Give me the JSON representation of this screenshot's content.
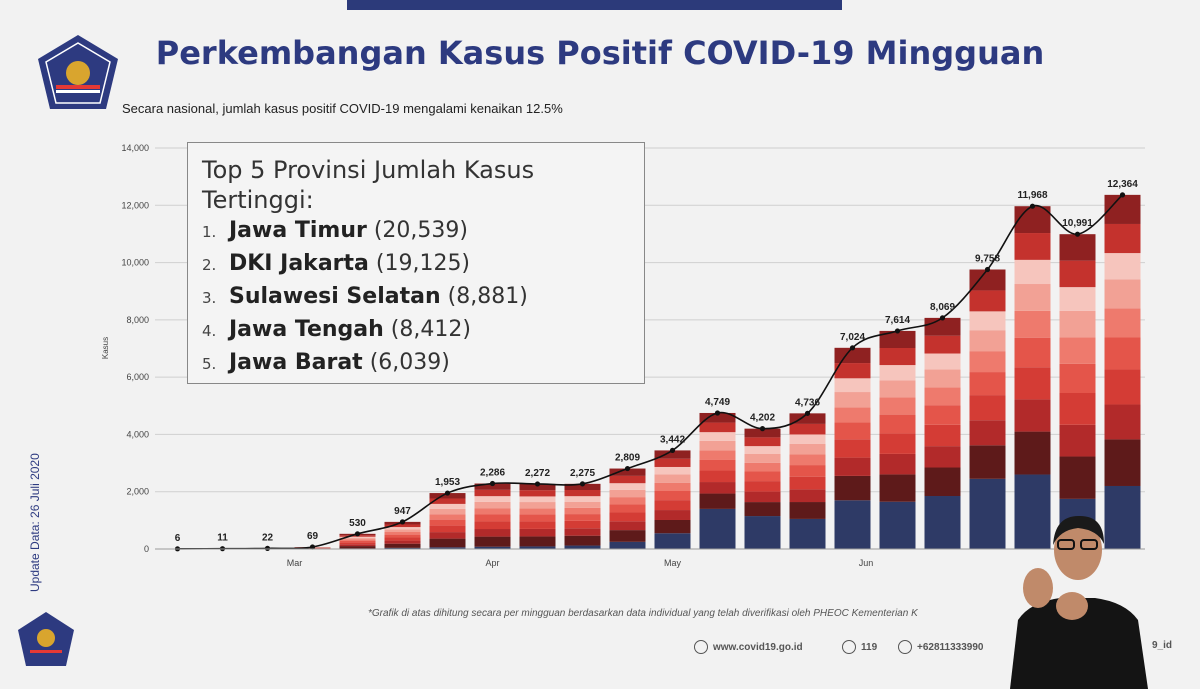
{
  "header": {
    "title": "Perkembangan Kasus Positif COVID-19 Mingguan",
    "subtitle": "Secara nasional, jumlah kasus positif COVID-19 mengalami kenaikan 12.5%",
    "update_date": "Update Data: 26 Juli 2020"
  },
  "infobox": {
    "heading_line1": "Top 5 Provinsi Jumlah Kasus",
    "heading_line2": "Tertinggi:",
    "items": [
      {
        "rank": "1.",
        "name": "Jawa Timur",
        "value": "(20,539)"
      },
      {
        "rank": "2.",
        "name": "DKI Jakarta",
        "value": "(19,125)"
      },
      {
        "rank": "3.",
        "name": "Sulawesi Selatan",
        "value": "(8,881)"
      },
      {
        "rank": "4.",
        "name": "Jawa Tengah",
        "value": "(8,412)"
      },
      {
        "rank": "5.",
        "name": "Jawa Barat",
        "value": "(6,039)"
      }
    ]
  },
  "footer": {
    "footnote": "*Grafik di atas dihitung secara per mingguan berdasarkan data individual yang telah diverifikasi oleh PHEOC Kementerian K",
    "website": "www.covid19.go.id",
    "hotline": "119",
    "phone": "+62811333990",
    "social": "9_id"
  },
  "colors": {
    "title": "#2d3a80",
    "navy": "#2e3a66",
    "line": "#111111"
  },
  "chart_data": {
    "type": "bar",
    "ylabel": "Kasus",
    "ylim": [
      0,
      14000
    ],
    "yticks": [
      0,
      2000,
      4000,
      6000,
      8000,
      10000,
      12000,
      14000
    ],
    "ytick_labels": [
      "0",
      "2,000",
      "4,000",
      "6,000",
      "8,000",
      "10,000",
      "12,000",
      "14,000"
    ],
    "month_labels": [
      {
        "label": "Mar",
        "index": 2.6
      },
      {
        "label": "Apr",
        "index": 7
      },
      {
        "label": "May",
        "index": 11
      },
      {
        "label": "Jun",
        "index": 15.3
      }
    ],
    "values": [
      6,
      11,
      22,
      69,
      530,
      947,
      1953,
      2286,
      2272,
      2275,
      2809,
      3442,
      4749,
      4202,
      4736,
      7024,
      7614,
      8069,
      9758,
      11968,
      10991,
      12364
    ],
    "value_labels": [
      "6",
      "11",
      "22",
      "69",
      "530",
      "947",
      "1,953",
      "2,286",
      "2,272",
      "2,275",
      "2,809",
      "3,442",
      "4,749",
      "4,202",
      "4,736",
      "7,024",
      "7,614",
      "8,069",
      "9,758",
      "11,968",
      "10,991",
      "12,364"
    ],
    "navy_base": [
      0,
      0,
      0,
      0,
      20,
      40,
      60,
      80,
      90,
      120,
      250,
      550,
      1400,
      1150,
      1050,
      1700,
      1650,
      1850,
      2450,
      2600,
      1750,
      2200
    ],
    "stack_colors": [
      "#5e1a1a",
      "#b22a2a",
      "#d43c35",
      "#e4554a",
      "#ee7a6d",
      "#f2a195",
      "#f6c5bd",
      "#c4322d",
      "#8f2121"
    ],
    "stack_fractions": [
      0.16,
      0.12,
      0.12,
      0.11,
      0.1,
      0.1,
      0.09,
      0.1,
      0.1
    ]
  }
}
